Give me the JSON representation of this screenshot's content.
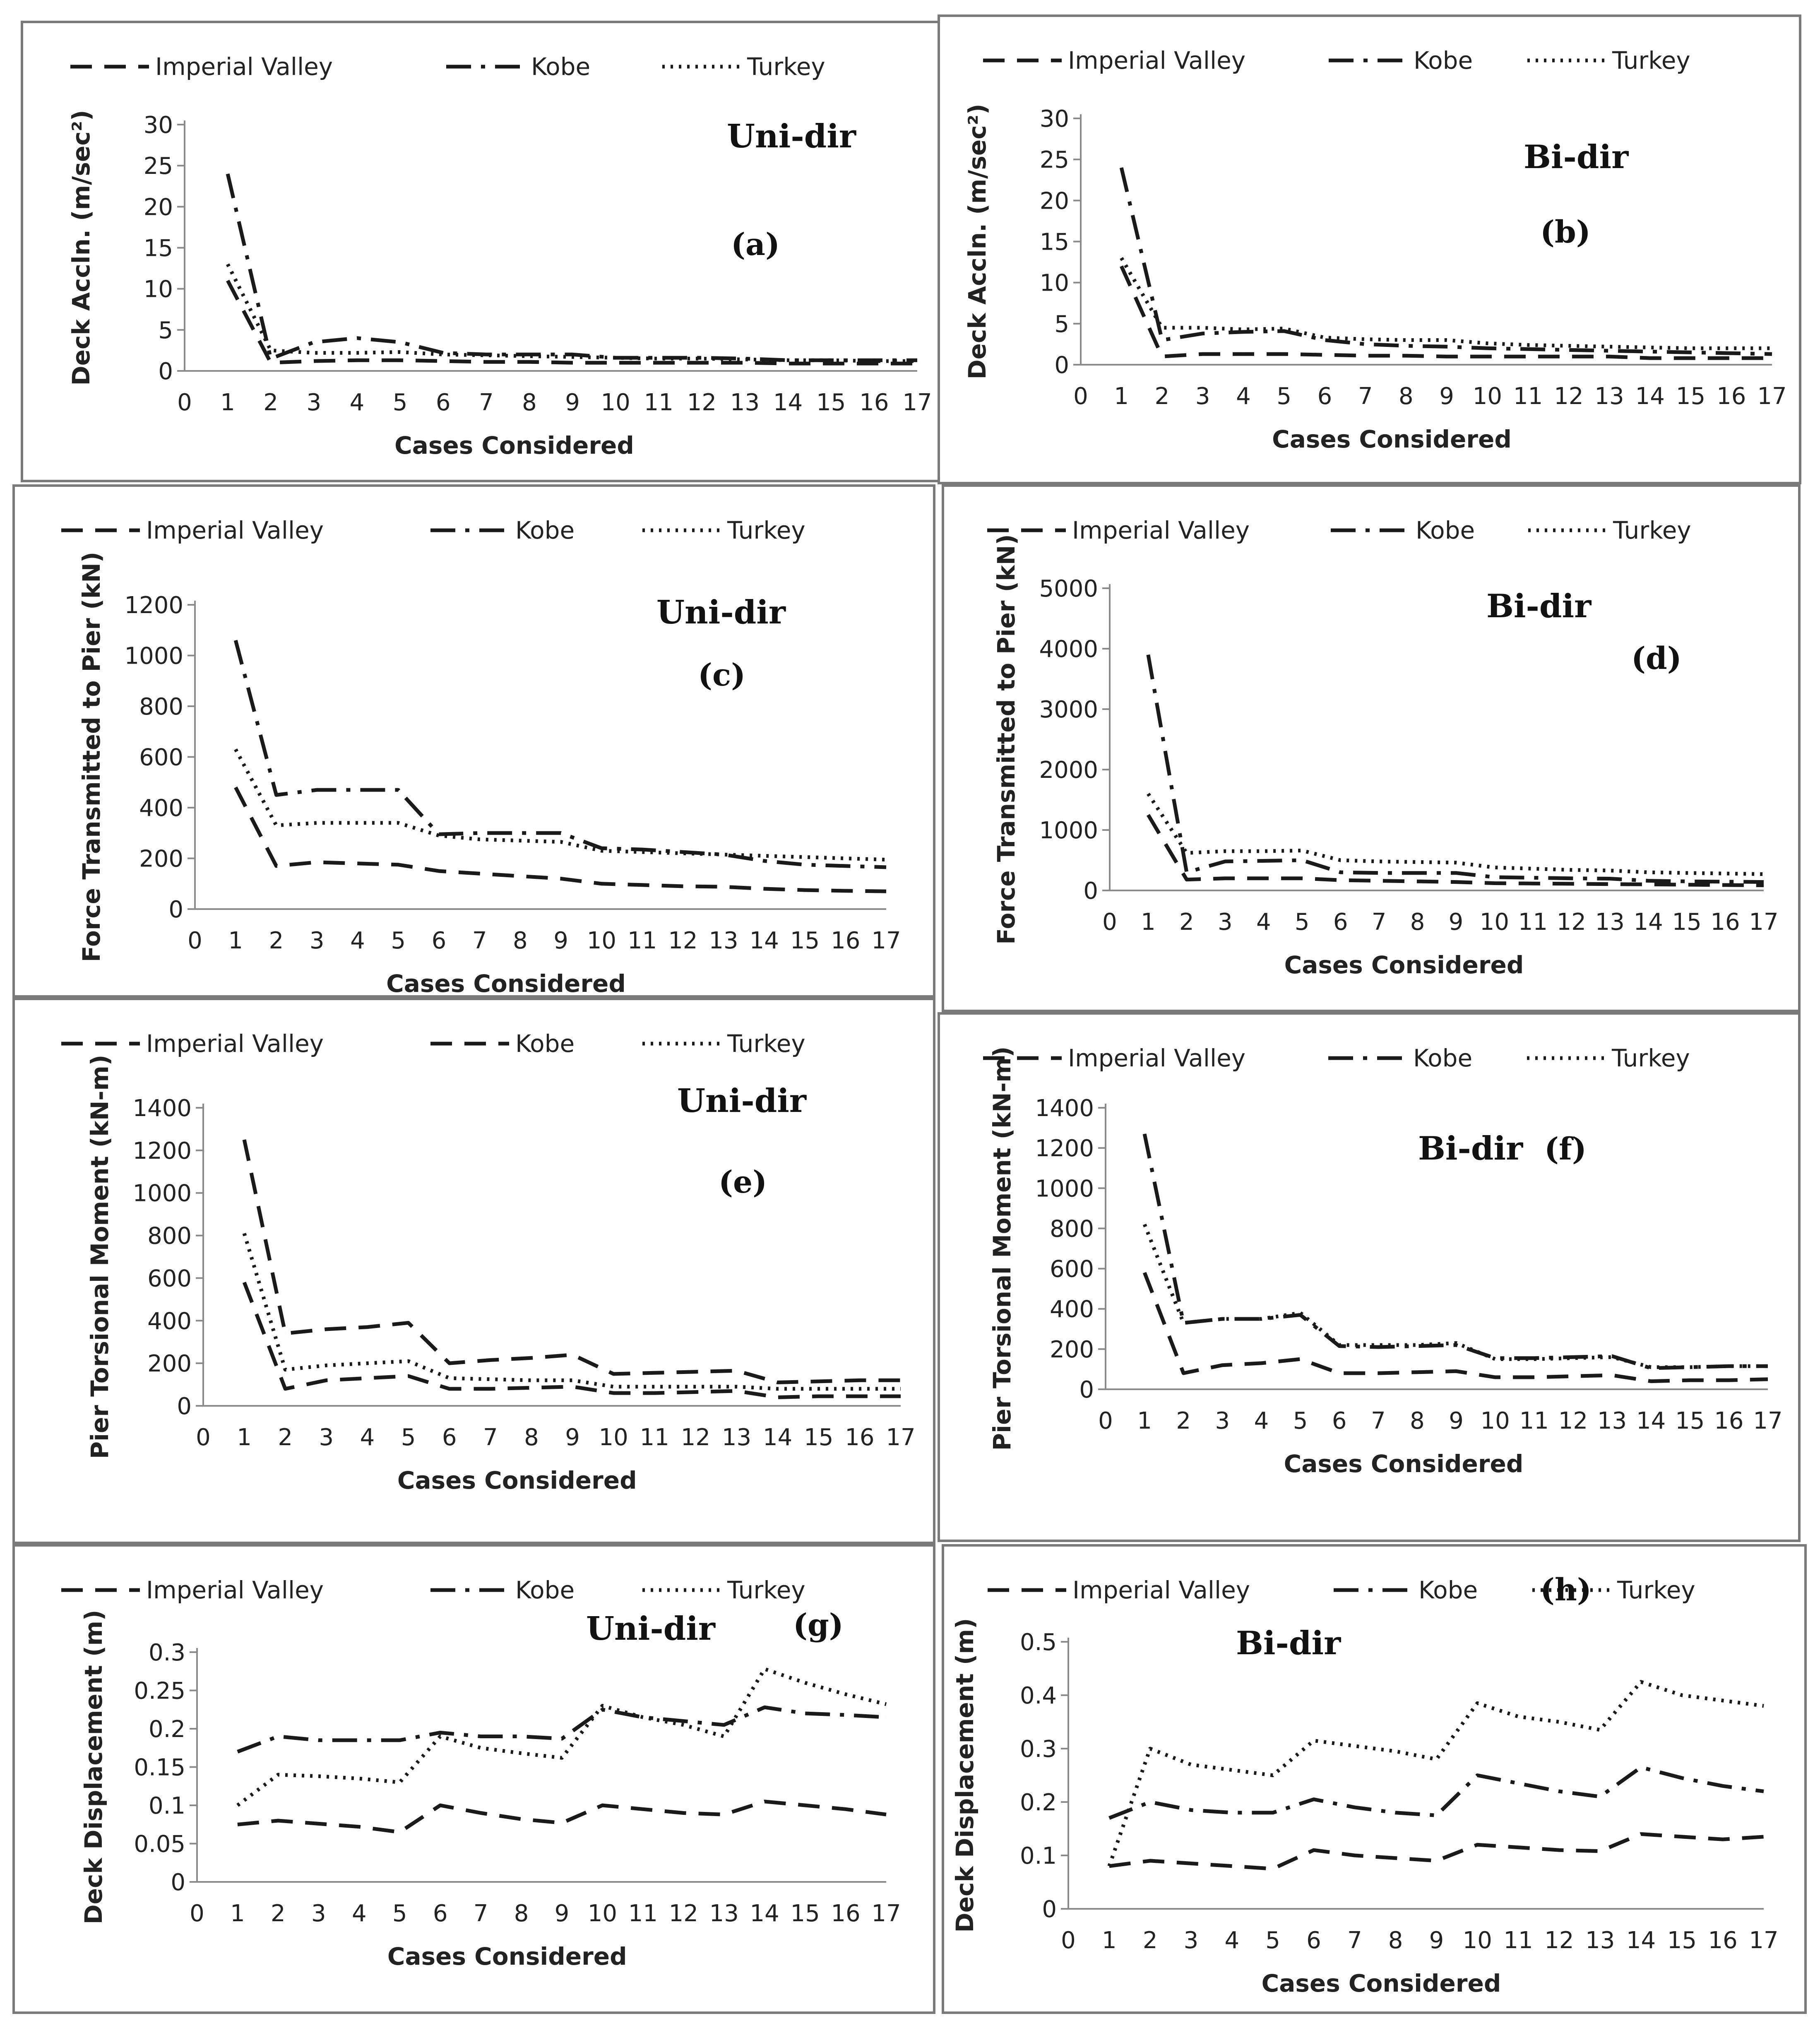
{
  "style": {
    "line_color": "#1a1a1a",
    "axis_color": "#8a8a8a",
    "frame_color": "#7a7a7a"
  },
  "chart_data": [
    {
      "id": "a",
      "type": "line",
      "direction": "Uni-dir",
      "tag": "(a)",
      "ylabel": "Deck Accln. (m/sec²)",
      "xlabel": "Cases Considered",
      "ylim": [
        0,
        30
      ],
      "yticks": [
        0,
        5,
        10,
        15,
        20,
        25,
        30
      ],
      "xlim": [
        0,
        17
      ],
      "xticks": [
        0,
        1,
        2,
        3,
        4,
        5,
        6,
        7,
        8,
        9,
        10,
        11,
        12,
        13,
        14,
        15,
        16,
        17
      ],
      "series": [
        {
          "name": "Imperial Valley",
          "dash": "long",
          "values": [
            11,
            1,
            1.2,
            1.3,
            1.3,
            1.2,
            1.1,
            1.1,
            1,
            1,
            1,
            1,
            1,
            0.9,
            0.9,
            0.9,
            0.9
          ]
        },
        {
          "name": "Kobe",
          "dash": "dashdot",
          "values": [
            24,
            1.5,
            3.5,
            4,
            3.5,
            2.2,
            2,
            2,
            2,
            1.6,
            1.6,
            1.6,
            1.5,
            1.3,
            1.3,
            1.3,
            1.3
          ]
        },
        {
          "name": "Turkey",
          "dash": "dotted",
          "values": [
            13,
            2.5,
            2.2,
            2.2,
            2.3,
            2.0,
            1.9,
            1.8,
            1.7,
            1.6,
            1.5,
            1.5,
            1.4,
            1.3,
            1.3,
            1.2,
            1.2
          ]
        }
      ]
    },
    {
      "id": "b",
      "type": "line",
      "direction": "Bi-dir",
      "tag": "(b)",
      "ylabel": "Deck Accln. (m/sec²)",
      "xlabel": "Cases Considered",
      "ylim": [
        0,
        30
      ],
      "yticks": [
        0,
        5,
        10,
        15,
        20,
        25,
        30
      ],
      "xlim": [
        0,
        17
      ],
      "xticks": [
        0,
        1,
        2,
        3,
        4,
        5,
        6,
        7,
        8,
        9,
        10,
        11,
        12,
        13,
        14,
        15,
        16,
        17
      ],
      "series": [
        {
          "name": "Imperial Valley",
          "dash": "long",
          "values": [
            12,
            1,
            1.3,
            1.3,
            1.3,
            1.2,
            1.1,
            1.1,
            1,
            1,
            1,
            1,
            1,
            0.8,
            0.8,
            0.8,
            0.8
          ]
        },
        {
          "name": "Kobe",
          "dash": "dashdot",
          "values": [
            24,
            3,
            3.8,
            4,
            4.1,
            3,
            2.5,
            2.3,
            2.2,
            2,
            1.9,
            1.8,
            1.7,
            1.6,
            1.5,
            1.4,
            1.3
          ]
        },
        {
          "name": "Turkey",
          "dash": "dotted",
          "values": [
            13,
            4.5,
            4.5,
            4.3,
            4.4,
            3.3,
            3.1,
            3,
            3,
            2.6,
            2.4,
            2.3,
            2.2,
            2.1,
            2,
            2,
            2
          ]
        }
      ]
    },
    {
      "id": "c",
      "type": "line",
      "direction": "Uni-dir",
      "tag": "(c)",
      "ylabel": "Force Transmitted to Pier (kN)",
      "xlabel": "Cases Considered",
      "ylim": [
        0,
        1200
      ],
      "yticks": [
        0,
        200,
        400,
        600,
        800,
        1000,
        1200
      ],
      "xlim": [
        0,
        17
      ],
      "xticks": [
        0,
        1,
        2,
        3,
        4,
        5,
        6,
        7,
        8,
        9,
        10,
        11,
        12,
        13,
        14,
        15,
        16,
        17
      ],
      "series": [
        {
          "name": "Imperial Valley",
          "dash": "long",
          "values": [
            480,
            170,
            185,
            180,
            175,
            150,
            140,
            130,
            120,
            100,
            95,
            90,
            88,
            80,
            75,
            72,
            70
          ]
        },
        {
          "name": "Kobe",
          "dash": "dashdot",
          "values": [
            1060,
            450,
            470,
            470,
            470,
            295,
            300,
            300,
            300,
            240,
            235,
            225,
            215,
            190,
            175,
            170,
            165
          ]
        },
        {
          "name": "Turkey",
          "dash": "dotted",
          "values": [
            630,
            330,
            340,
            340,
            340,
            290,
            275,
            270,
            265,
            230,
            225,
            220,
            215,
            210,
            205,
            200,
            195
          ]
        }
      ]
    },
    {
      "id": "d",
      "type": "line",
      "direction": "Bi-dir",
      "tag": "(d)",
      "ylabel": "Force Transmitted to Pier (kN)",
      "xlabel": "Cases Considered",
      "ylim": [
        0,
        5000
      ],
      "yticks": [
        0,
        1000,
        2000,
        3000,
        4000,
        5000
      ],
      "xlim": [
        0,
        17
      ],
      "xticks": [
        0,
        1,
        2,
        3,
        4,
        5,
        6,
        7,
        8,
        9,
        10,
        11,
        12,
        13,
        14,
        15,
        16,
        17
      ],
      "series": [
        {
          "name": "Imperial Valley",
          "dash": "long",
          "values": [
            1250,
            180,
            200,
            200,
            200,
            170,
            160,
            150,
            140,
            120,
            115,
            110,
            105,
            100,
            95,
            90,
            85
          ]
        },
        {
          "name": "Kobe",
          "dash": "dashdot",
          "values": [
            3900,
            300,
            480,
            490,
            500,
            300,
            290,
            290,
            290,
            220,
            210,
            200,
            195,
            160,
            150,
            145,
            140
          ]
        },
        {
          "name": "Turkey",
          "dash": "dotted",
          "values": [
            1600,
            620,
            650,
            650,
            660,
            500,
            480,
            470,
            460,
            380,
            360,
            340,
            330,
            300,
            290,
            280,
            270
          ]
        }
      ]
    },
    {
      "id": "e",
      "type": "line",
      "direction": "Uni-dir",
      "tag": "(e)",
      "ylabel": "Pier Torsional Moment (kN-m)",
      "xlabel": "Cases Considered",
      "ylim": [
        0,
        1400
      ],
      "yticks": [
        0,
        200,
        400,
        600,
        800,
        1000,
        1200,
        1400
      ],
      "xlim": [
        0,
        17
      ],
      "xticks": [
        0,
        1,
        2,
        3,
        4,
        5,
        6,
        7,
        8,
        9,
        10,
        11,
        12,
        13,
        14,
        15,
        16,
        17
      ],
      "series": [
        {
          "name": "Imperial Valley",
          "dash": "long",
          "values": [
            580,
            80,
            120,
            130,
            140,
            80,
            80,
            85,
            90,
            60,
            60,
            65,
            70,
            40,
            45,
            45,
            45
          ]
        },
        {
          "name": "Kobe",
          "dash": "long",
          "values": [
            1250,
            340,
            360,
            370,
            390,
            200,
            215,
            225,
            240,
            150,
            155,
            160,
            165,
            110,
            115,
            120,
            120
          ]
        },
        {
          "name": "Turkey",
          "dash": "dotted",
          "values": [
            810,
            170,
            190,
            200,
            210,
            130,
            125,
            120,
            120,
            90,
            90,
            90,
            90,
            80,
            80,
            80,
            80
          ]
        }
      ]
    },
    {
      "id": "f",
      "type": "line",
      "direction": "Bi-dir",
      "tag": "(f)",
      "ylabel": "Pier Torsional Moment (kN-m)",
      "xlabel": "Cases Considered",
      "ylim": [
        0,
        1400
      ],
      "yticks": [
        0,
        200,
        400,
        600,
        800,
        1000,
        1200,
        1400
      ],
      "xlim": [
        0,
        17
      ],
      "xticks": [
        0,
        1,
        2,
        3,
        4,
        5,
        6,
        7,
        8,
        9,
        10,
        11,
        12,
        13,
        14,
        15,
        16,
        17
      ],
      "series": [
        {
          "name": "Imperial Valley",
          "dash": "long",
          "values": [
            580,
            80,
            120,
            130,
            150,
            80,
            80,
            85,
            90,
            60,
            60,
            65,
            70,
            40,
            45,
            45,
            50
          ]
        },
        {
          "name": "Kobe",
          "dash": "dashdot",
          "values": [
            1270,
            330,
            350,
            350,
            370,
            215,
            210,
            215,
            220,
            155,
            155,
            160,
            165,
            105,
            110,
            115,
            115
          ]
        },
        {
          "name": "Turkey",
          "dash": "dotted",
          "values": [
            820,
            330,
            350,
            350,
            380,
            220,
            220,
            220,
            230,
            150,
            150,
            155,
            160,
            110,
            110,
            115,
            115
          ]
        }
      ]
    },
    {
      "id": "g",
      "type": "line",
      "direction": "Uni-dir",
      "tag": "(g)",
      "ylabel": "Deck Displacement (m)",
      "xlabel": "Cases Considered",
      "ylim": [
        0,
        0.3
      ],
      "yticks": [
        0,
        0.05,
        0.1,
        0.15,
        0.2,
        0.25,
        0.3
      ],
      "xlim": [
        0,
        17
      ],
      "xticks": [
        0,
        1,
        2,
        3,
        4,
        5,
        6,
        7,
        8,
        9,
        10,
        11,
        12,
        13,
        14,
        15,
        16,
        17
      ],
      "series": [
        {
          "name": "Imperial Valley",
          "dash": "long",
          "values": [
            0.075,
            0.08,
            0.076,
            0.072,
            0.065,
            0.1,
            0.09,
            0.082,
            0.077,
            0.1,
            0.095,
            0.09,
            0.088,
            0.105,
            0.1,
            0.095,
            0.088
          ]
        },
        {
          "name": "Kobe",
          "dash": "dashdot",
          "values": [
            0.17,
            0.19,
            0.185,
            0.185,
            0.185,
            0.195,
            0.19,
            0.19,
            0.187,
            0.225,
            0.215,
            0.21,
            0.205,
            0.228,
            0.22,
            0.218,
            0.215
          ]
        },
        {
          "name": "Turkey",
          "dash": "dotted",
          "values": [
            0.1,
            0.14,
            0.138,
            0.135,
            0.13,
            0.19,
            0.175,
            0.168,
            0.162,
            0.23,
            0.215,
            0.205,
            0.19,
            0.278,
            0.26,
            0.245,
            0.232
          ]
        }
      ]
    },
    {
      "id": "h",
      "type": "line",
      "direction": "Bi-dir",
      "tag": "(h)",
      "ylabel": "Deck Displacement (m)",
      "xlabel": "Cases Considered",
      "ylim": [
        0,
        0.5
      ],
      "yticks": [
        0,
        0.1,
        0.2,
        0.3,
        0.4,
        0.5
      ],
      "xlim": [
        0,
        17
      ],
      "xticks": [
        0,
        1,
        2,
        3,
        4,
        5,
        6,
        7,
        8,
        9,
        10,
        11,
        12,
        13,
        14,
        15,
        16,
        17
      ],
      "series": [
        {
          "name": "Imperial Valley",
          "dash": "long",
          "values": [
            0.08,
            0.09,
            0.085,
            0.08,
            0.075,
            0.11,
            0.1,
            0.095,
            0.09,
            0.12,
            0.115,
            0.11,
            0.108,
            0.14,
            0.135,
            0.13,
            0.135
          ]
        },
        {
          "name": "Kobe",
          "dash": "dashdot",
          "values": [
            0.17,
            0.2,
            0.185,
            0.18,
            0.18,
            0.205,
            0.19,
            0.18,
            0.175,
            0.25,
            0.235,
            0.22,
            0.21,
            0.265,
            0.245,
            0.23,
            0.22
          ]
        },
        {
          "name": "Turkey",
          "dash": "dotted",
          "values": [
            0.08,
            0.3,
            0.27,
            0.26,
            0.25,
            0.315,
            0.305,
            0.295,
            0.28,
            0.385,
            0.36,
            0.35,
            0.335,
            0.425,
            0.4,
            0.39,
            0.38
          ]
        }
      ]
    }
  ]
}
